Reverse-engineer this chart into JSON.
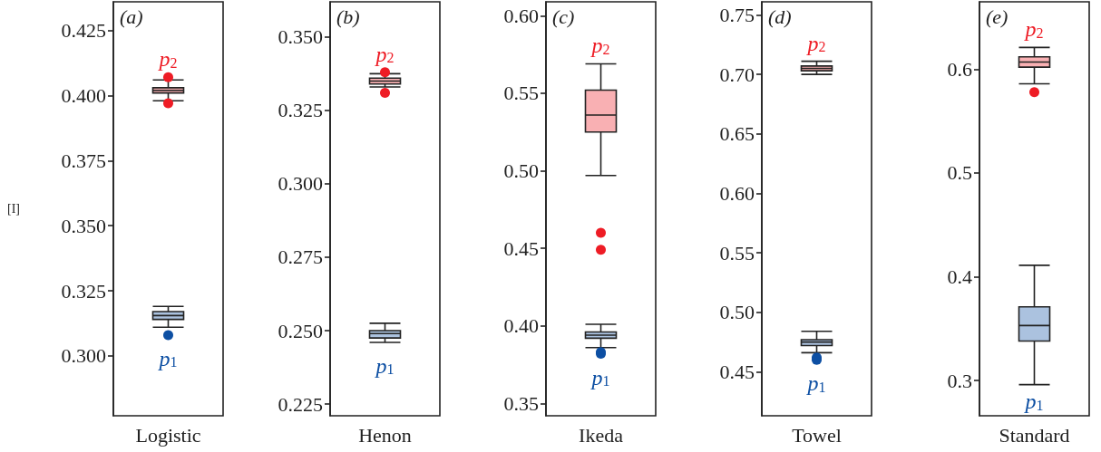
{
  "chart_data": [
    {
      "type": "box",
      "title": "(a)",
      "ylabel": "[I]",
      "categories": [
        "Logistic"
      ],
      "ylim": [
        0.277,
        0.436
      ],
      "yticks": [
        {
          "value": 0.3,
          "label": "0.300"
        },
        0.325,
        {
          "value": 0.35,
          "label": "0.350"
        },
        0.375,
        {
          "value": 0.4,
          "label": "0.400"
        },
        0.425
      ],
      "series": [
        {
          "name": "p$_{2}$",
          "color": "#ee1c25",
          "boxes": [
            {
              "low": 0.398,
              "q1": 0.401,
              "median": 0.402,
              "q3": 0.403,
              "high": 0.406,
              "outliers": [
                0.407,
                0.397
              ]
            }
          ]
        },
        {
          "name": "p$_{1}$",
          "color": "#0d4fa3",
          "boxes": [
            {
              "low": 0.311,
              "q1": 0.314,
              "median": 0.3155,
              "q3": 0.317,
              "high": 0.319,
              "outliers": [
                0.308
              ]
            }
          ]
        }
      ]
    },
    {
      "type": "box",
      "title": "(b)",
      "categories": [
        "Henon"
      ],
      "ylim": [
        0.221,
        0.362
      ],
      "yticks": [
        0.225,
        {
          "value": 0.25,
          "label": "0.250"
        },
        0.275,
        {
          "value": 0.3,
          "label": "0.300"
        },
        0.325,
        {
          "value": 0.35,
          "label": "0.350"
        }
      ],
      "series": [
        {
          "name": "p$_{2}$",
          "color": "#ee1c25",
          "boxes": [
            {
              "low": 0.333,
              "q1": 0.334,
              "median": 0.335,
              "q3": 0.336,
              "high": 0.3375,
              "outliers": [
                0.338,
                0.331
              ]
            }
          ]
        },
        {
          "name": "p$_{1}$",
          "color": "#0d4fa3",
          "boxes": [
            {
              "low": 0.246,
              "q1": 0.2475,
              "median": 0.249,
              "q3": 0.25,
              "high": 0.2525
            }
          ]
        }
      ]
    },
    {
      "type": "box",
      "title": "(c)",
      "categories": [
        "Ikeda"
      ],
      "ylim": [
        0.342,
        0.609
      ],
      "yticks": [
        0.35,
        {
          "value": 0.4,
          "label": "0.40"
        },
        0.45,
        {
          "value": 0.5,
          "label": "0.50"
        },
        0.55,
        {
          "value": 0.6,
          "label": "0.60"
        }
      ],
      "series": [
        {
          "name": "p$_{2}$",
          "color": "#ee1c25",
          "boxes": [
            {
              "low": 0.497,
              "q1": 0.525,
              "median": 0.536,
              "q3": 0.552,
              "high": 0.569,
              "outliers": [
                0.46,
                0.449
              ]
            }
          ]
        },
        {
          "name": "p$_{1}$",
          "color": "#0d4fa3",
          "boxes": [
            {
              "low": 0.386,
              "q1": 0.392,
              "median": 0.394,
              "q3": 0.396,
              "high": 0.401,
              "outliers": [
                0.383,
                0.382
              ]
            }
          ]
        }
      ]
    },
    {
      "type": "box",
      "title": "(d)",
      "categories": [
        "Towel"
      ],
      "ylim": [
        0.413,
        0.761
      ],
      "yticks": [
        0.45,
        {
          "value": 0.5,
          "label": "0.50"
        },
        0.55,
        {
          "value": 0.6,
          "label": "0.60"
        },
        0.65,
        {
          "value": 0.7,
          "label": "0.70"
        },
        0.75
      ],
      "series": [
        {
          "name": "p$_{2}$",
          "color": "#ee1c25",
          "boxes": [
            {
              "low": 0.7,
              "q1": 0.703,
              "median": 0.705,
              "q3": 0.707,
              "high": 0.711
            }
          ]
        },
        {
          "name": "p$_{1}$",
          "color": "#0d4fa3",
          "boxes": [
            {
              "low": 0.466,
              "q1": 0.472,
              "median": 0.475,
              "q3": 0.477,
              "high": 0.484,
              "outliers": [
                0.462,
                0.46
              ]
            }
          ]
        }
      ]
    },
    {
      "type": "box",
      "title": "(e)",
      "categories": [
        "Standard"
      ],
      "ylim": [
        0.266,
        0.665
      ],
      "yticks": [
        0.3,
        0.4,
        0.5,
        0.6
      ],
      "series": [
        {
          "name": "p$_{2}$",
          "color": "#ee1c25",
          "boxes": [
            {
              "low": 0.586,
              "q1": 0.602,
              "median": 0.607,
              "q3": 0.612,
              "high": 0.621,
              "outliers": [
                0.578
              ]
            }
          ]
        },
        {
          "name": "p$_{1}$",
          "color": "#0d4fa3",
          "boxes": [
            {
              "low": 0.296,
              "q1": 0.338,
              "median": 0.353,
              "q3": 0.371,
              "high": 0.411
            }
          ]
        }
      ]
    }
  ]
}
